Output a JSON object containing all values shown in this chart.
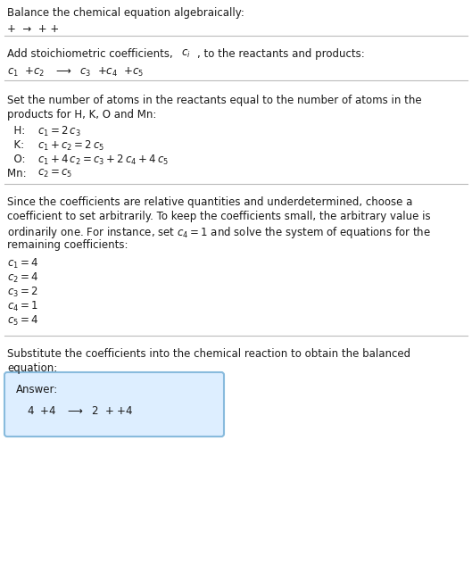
{
  "title": "Balance the chemical equation algebraically:",
  "line1": "+  →  + +",
  "section2_header": "Add stoichiometric coefficients, $c_i$, to the reactants and products:",
  "section2_eq": "$c_1$  $+c_2$   $\\longrightarrow$  $c_3$  $+c_4$  $+c_5$",
  "section3_header1": "Set the number of atoms in the reactants equal to the number of atoms in the",
  "section3_header2": "products for H, K, O and Mn:",
  "section3_H_label": "  H: ",
  "section3_H_eq": "$c_1 = 2\\,c_3$",
  "section3_K_label": "  K: ",
  "section3_K_eq": "$c_1 + c_2 = 2\\,c_5$",
  "section3_O_label": "  O: ",
  "section3_O_eq": "$c_1 + 4\\,c_2 = c_3 + 2\\,c_4 + 4\\,c_5$",
  "section3_Mn_label": "Mn: ",
  "section3_Mn_eq": "$c_2 = c_5$",
  "section4_para": [
    "Since the coefficients are relative quantities and underdetermined, choose a",
    "coefficient to set arbitrarily. To keep the coefficients small, the arbitrary value is",
    "ordinarily one. For instance, set $c_4 = 1$ and solve the system of equations for the",
    "remaining coefficients:"
  ],
  "section4_vals": [
    "$c_1 = 4$",
    "$c_2 = 4$",
    "$c_3 = 2$",
    "$c_4 = 1$",
    "$c_5 = 4$"
  ],
  "section5_header1": "Substitute the coefficients into the chemical reaction to obtain the balanced",
  "section5_header2": "equation:",
  "answer_label": "Answer:",
  "answer_eq": "4  $+4$   $\\longrightarrow$  2  $+$ $+4$",
  "bg_color": "#ffffff",
  "text_color": "#1a1a1a",
  "gray_text_color": "#555555",
  "box_bg_color": "#ddeeff",
  "box_edge_color": "#88bbdd",
  "line_color": "#bbbbbb",
  "font_size": 8.5,
  "eq_font_size": 8.5,
  "fig_width": 5.29,
  "fig_height": 6.43,
  "dpi": 100
}
